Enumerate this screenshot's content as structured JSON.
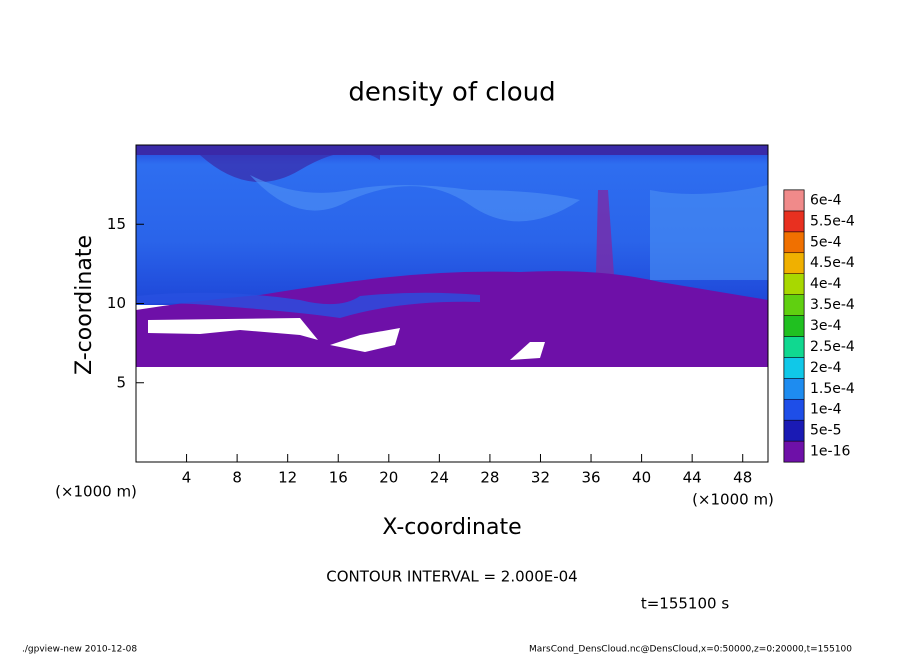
{
  "chart_data": {
    "type": "contour",
    "title": "density of cloud",
    "x_label": "X-coordinate",
    "y_label": "Z-coordinate",
    "x_unit_labels": [
      "(×1000 m)",
      "(×1000 m)"
    ],
    "xlim": [
      0,
      50
    ],
    "ylim": [
      0,
      20
    ],
    "xticks": [
      4,
      8,
      12,
      16,
      20,
      24,
      28,
      32,
      36,
      40,
      44,
      48
    ],
    "yticks": [
      5,
      10,
      15
    ],
    "colorbar": {
      "levels": [
        {
          "value": 1e-16,
          "label": "1e-16"
        },
        {
          "value": 5e-05,
          "label": "5e-5"
        },
        {
          "value": 0.0001,
          "label": "1e-4"
        },
        {
          "value": 0.00015,
          "label": "1.5e-4"
        },
        {
          "value": 0.0002,
          "label": "2e-4"
        },
        {
          "value": 0.00025,
          "label": "2.5e-4"
        },
        {
          "value": 0.0003,
          "label": "3e-4"
        },
        {
          "value": 0.00035,
          "label": "3.5e-4"
        },
        {
          "value": 0.0004,
          "label": "4e-4"
        },
        {
          "value": 0.00045,
          "label": "4.5e-4"
        },
        {
          "value": 0.0005,
          "label": "5e-4"
        },
        {
          "value": 0.00055,
          "label": "5.5e-4"
        },
        {
          "value": 0.0006,
          "label": "6e-4"
        }
      ],
      "colors": [
        "#6e10a8",
        "#1a1ab4",
        "#1e4ee8",
        "#1e8cf0",
        "#10c8e8",
        "#10d890",
        "#20c020",
        "#60d010",
        "#a8d800",
        "#f0b000",
        "#f07000",
        "#e83020",
        "#f08a8a"
      ]
    },
    "contour_interval": "CONTOUR INTERVAL = 2.000E-04",
    "time_label": "t=155100 s",
    "footer_left": "./gpview-new  2010-12-08",
    "footer_right": "MarsCond_DensCloud.nc@DensCloud,x=0:50000,z=0:20000,t=155100"
  }
}
